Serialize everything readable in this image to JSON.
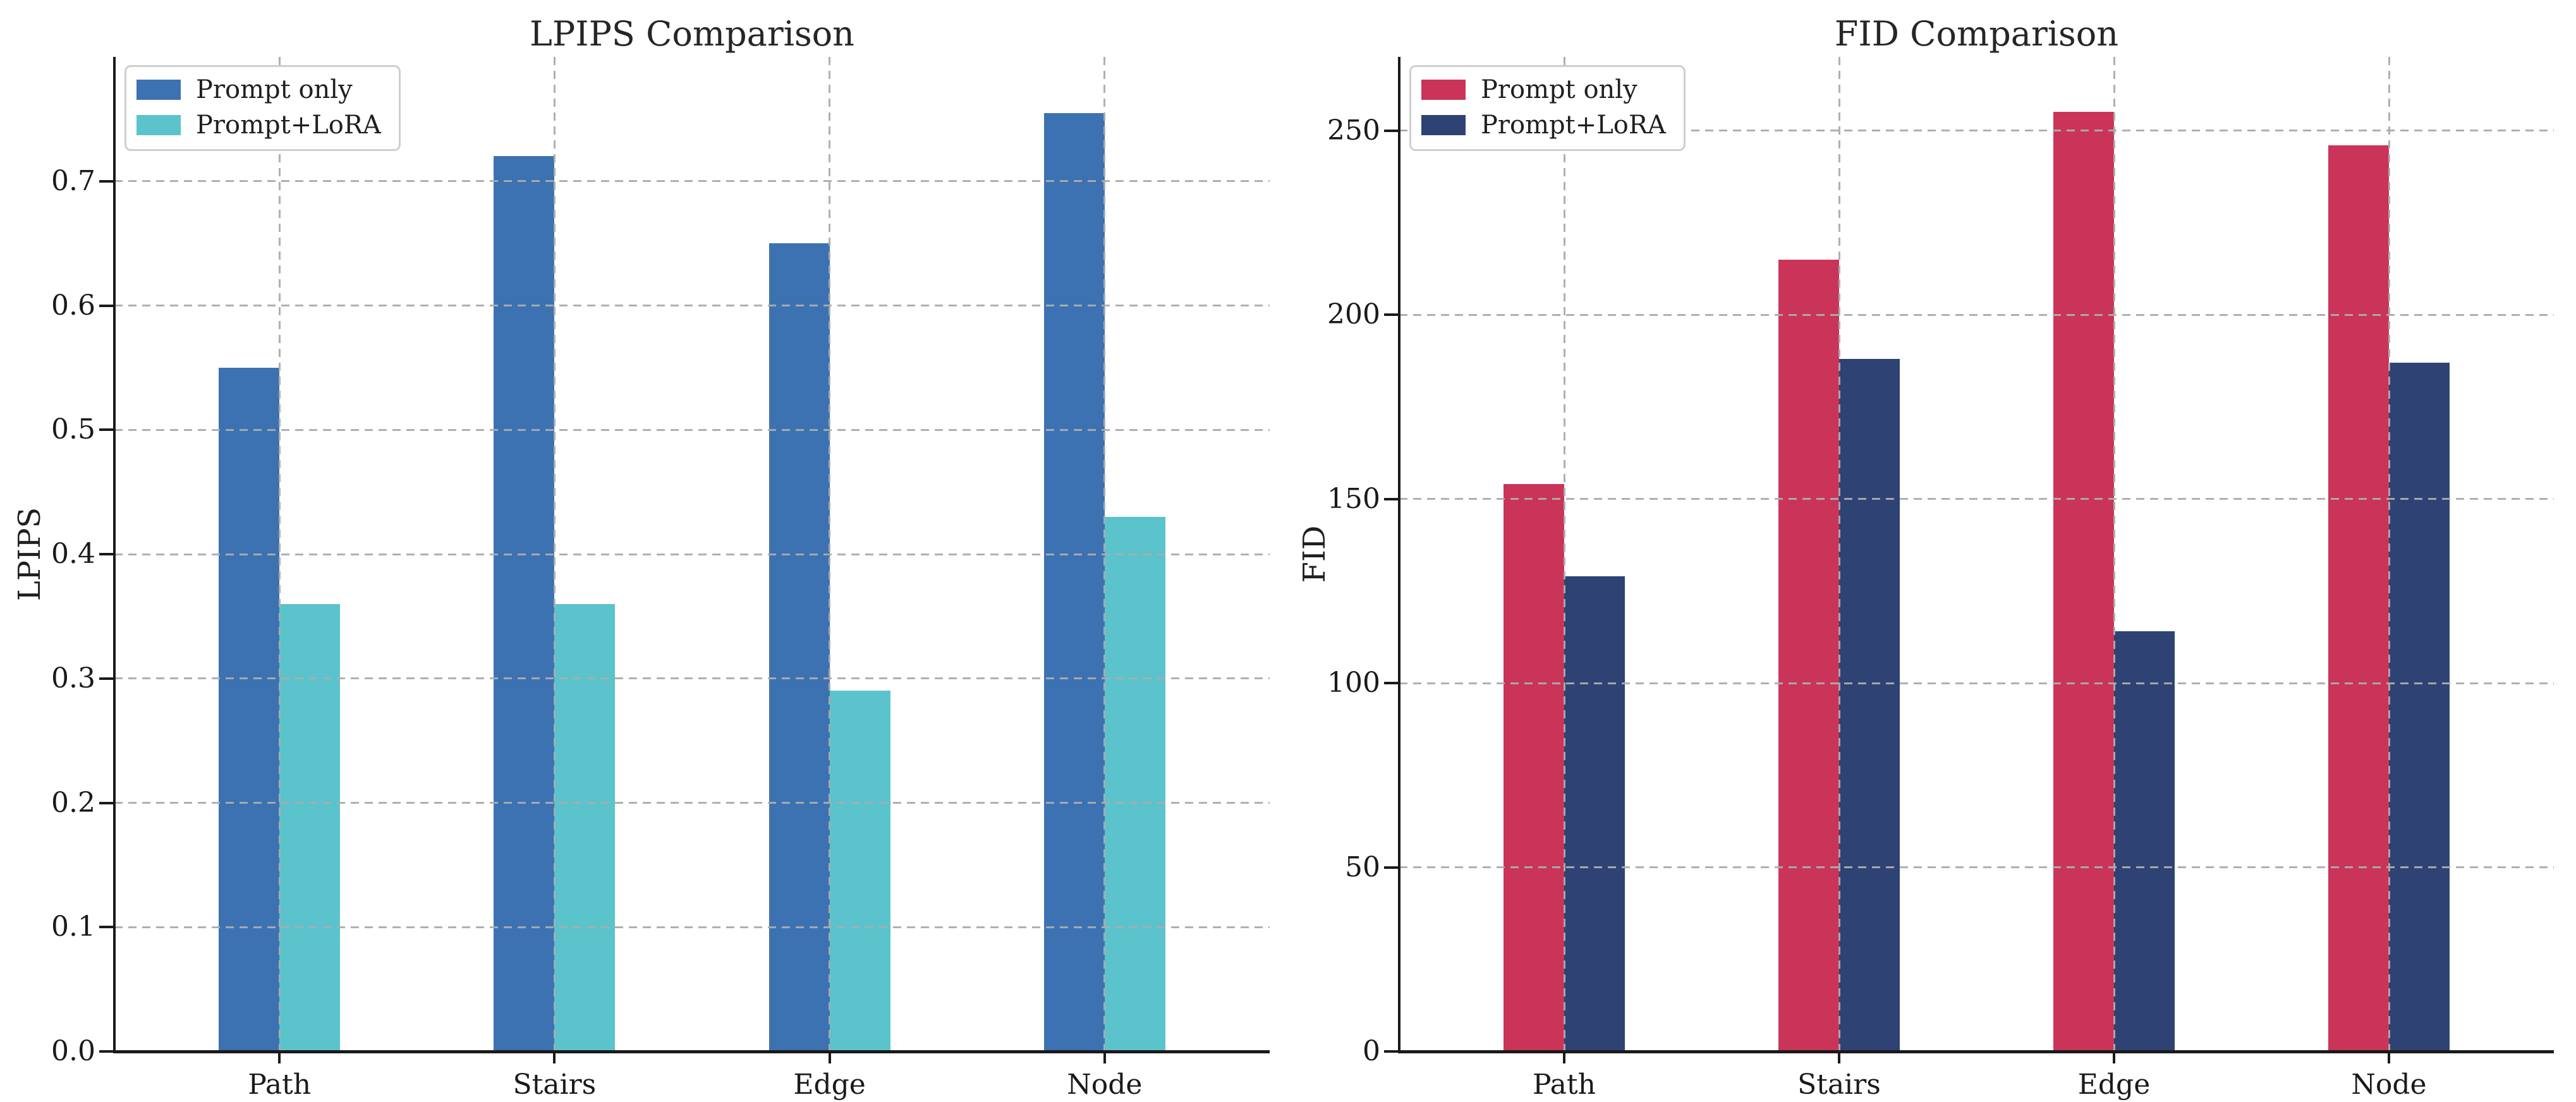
{
  "figure": {
    "background": "#ffffff"
  },
  "chart_data": [
    {
      "id": "lpips",
      "type": "bar",
      "title": "LPIPS Comparison",
      "ylabel": "LPIPS",
      "xlabel": "",
      "categories": [
        "Path",
        "Stairs",
        "Edge",
        "Node"
      ],
      "series": [
        {
          "name": "Prompt only",
          "color": "#3c72b1",
          "values": [
            0.55,
            0.72,
            0.65,
            0.755
          ]
        },
        {
          "name": "Prompt+LoRA",
          "color": "#5bc3cc",
          "values": [
            0.36,
            0.36,
            0.29,
            0.43
          ]
        }
      ],
      "ylim": [
        0,
        0.8
      ],
      "yticks": [
        {
          "value": 0.0,
          "label": "0.0"
        },
        {
          "value": 0.1,
          "label": "0.1"
        },
        {
          "value": 0.2,
          "label": "0.2"
        },
        {
          "value": 0.3,
          "label": "0.3"
        },
        {
          "value": 0.4,
          "label": "0.4"
        },
        {
          "value": 0.5,
          "label": "0.5"
        },
        {
          "value": 0.6,
          "label": "0.6"
        },
        {
          "value": 0.7,
          "label": "0.7"
        }
      ],
      "grid": "dashed",
      "legend_position": "upper-left"
    },
    {
      "id": "fid",
      "type": "bar",
      "title": "FID Comparison",
      "ylabel": "FID",
      "xlabel": "",
      "categories": [
        "Path",
        "Stairs",
        "Edge",
        "Node"
      ],
      "series": [
        {
          "name": "Prompt only",
          "color": "#ca3459",
          "values": [
            154,
            215,
            255,
            246
          ]
        },
        {
          "name": "Prompt+LoRA",
          "color": "#2e4273",
          "values": [
            129,
            188,
            114,
            187
          ]
        }
      ],
      "ylim": [
        0,
        270
      ],
      "yticks": [
        {
          "value": 0,
          "label": "0"
        },
        {
          "value": 50,
          "label": "50"
        },
        {
          "value": 100,
          "label": "100"
        },
        {
          "value": 150,
          "label": "150"
        },
        {
          "value": 200,
          "label": "200"
        },
        {
          "value": 250,
          "label": "250"
        }
      ],
      "grid": "dashed",
      "legend_position": "upper-left"
    }
  ]
}
